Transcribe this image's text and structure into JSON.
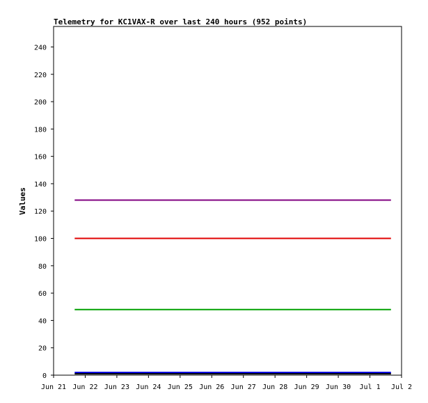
{
  "chart_data": {
    "type": "line",
    "title": "Telemetry for KC1VAX-R over last 240 hours (952 points)",
    "ylabel": "Values",
    "xlabel": "",
    "ylim": [
      0,
      255
    ],
    "yticks": [
      0,
      20,
      40,
      60,
      80,
      100,
      120,
      140,
      160,
      180,
      200,
      220,
      240
    ],
    "xlim": [
      "2025-06-21T00:00",
      "2025-07-02T00:00"
    ],
    "xticks": [
      "Jun 21",
      "Jun 22",
      "Jun 23",
      "Jun 24",
      "Jun 25",
      "Jun 26",
      "Jun 27",
      "Jun 28",
      "Jun 29",
      "Jun 30",
      "Jul 1",
      "Jul 2"
    ],
    "grid": false,
    "x": [
      "2025-06-21T16:00",
      "2025-07-01T16:00"
    ],
    "series": [
      {
        "color": "#800080",
        "values": [
          128,
          128
        ]
      },
      {
        "color": "#e00000",
        "values": [
          100,
          100
        ]
      },
      {
        "color": "#00a000",
        "values": [
          48,
          48
        ]
      },
      {
        "color": "#000000",
        "values": [
          1,
          1
        ]
      },
      {
        "color": "#0000e0",
        "values": [
          2,
          2
        ]
      }
    ]
  }
}
